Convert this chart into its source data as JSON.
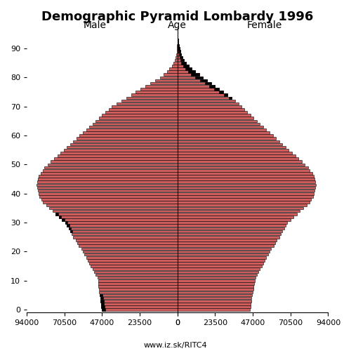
{
  "title": "Demographic Pyramid Lombardy 1996",
  "xlabel_male": "Male",
  "xlabel_female": "Female",
  "xlabel_age": "Age",
  "watermark": "www.iz.sk/RITC4",
  "bar_color": "#cd5c5c",
  "bar_edge_color": "#000000",
  "background_color": "#ffffff",
  "xlim": 94000,
  "male": [
    47000,
    47500,
    47800,
    48000,
    48200,
    48500,
    48800,
    49000,
    49200,
    49400,
    49600,
    50000,
    51000,
    52000,
    53000,
    54000,
    55000,
    56000,
    57000,
    58000,
    59000,
    60000,
    61500,
    62500,
    63500,
    65000,
    66000,
    67000,
    68000,
    69000,
    70000,
    72000,
    74000,
    76000,
    78000,
    80000,
    82000,
    84000,
    85000,
    86000,
    86500,
    87000,
    87500,
    88000,
    87500,
    87000,
    86500,
    85500,
    84000,
    83000,
    81000,
    79000,
    77000,
    75000,
    73000,
    71000,
    69000,
    67000,
    65000,
    63000,
    61000,
    59000,
    57000,
    55000,
    53000,
    51000,
    49000,
    47000,
    45000,
    43000,
    41000,
    38000,
    35000,
    32000,
    29000,
    26000,
    23000,
    20000,
    17000,
    14000,
    11000,
    8500,
    6500,
    5000,
    3500,
    2500,
    1800,
    1200,
    800,
    500,
    300,
    150,
    80,
    40,
    20,
    10
  ],
  "female": [
    45000,
    45500,
    45800,
    46000,
    46300,
    46600,
    46900,
    47200,
    47500,
    47800,
    48200,
    48600,
    49500,
    50500,
    51500,
    52500,
    53500,
    54500,
    55500,
    56500,
    57500,
    58500,
    60000,
    61000,
    62000,
    63500,
    64500,
    65500,
    66500,
    67500,
    68500,
    70500,
    72500,
    74500,
    76500,
    78500,
    80500,
    82500,
    83500,
    84500,
    85000,
    85500,
    86000,
    86500,
    86000,
    85500,
    85000,
    84000,
    82500,
    81500,
    79500,
    77500,
    75500,
    73500,
    71500,
    69500,
    67500,
    65500,
    63500,
    61500,
    59500,
    57500,
    55500,
    53500,
    51500,
    49500,
    47500,
    45500,
    43500,
    41500,
    40000,
    38000,
    36000,
    34000,
    31000,
    28500,
    26000,
    23500,
    21000,
    18500,
    16000,
    13500,
    11000,
    9000,
    7000,
    5500,
    4200,
    3200,
    2400,
    1800,
    1300,
    900,
    600,
    350,
    180,
    80
  ]
}
